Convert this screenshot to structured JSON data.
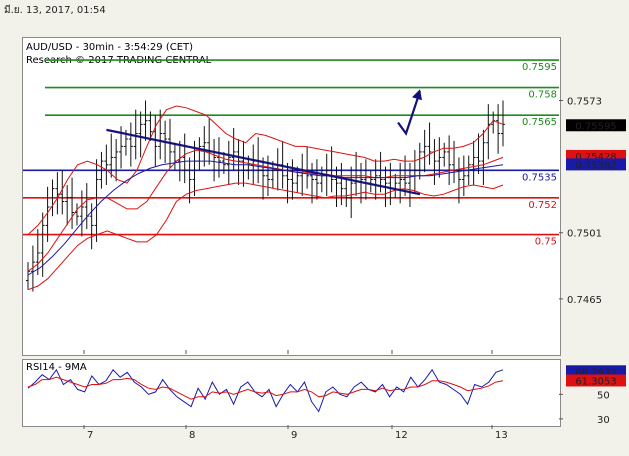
{
  "page": {
    "date_stamp": "มี.ย. 13, 2017, 01:54"
  },
  "chart_data": [
    {
      "type": "candlestick",
      "title": "AUD/USD - 30min - 3:54:29 (CET)",
      "subtitle": "Research © 2017 TRADING CENTRAL",
      "ylim": [
        0.7435,
        0.7607
      ],
      "y_ticks": [
        0.7573,
        0.7501,
        0.7465
      ],
      "x_ticks": [
        "7",
        "8",
        "9",
        "12",
        "13"
      ],
      "levels": [
        {
          "label": "0.7595",
          "value": 0.7595,
          "color": "#1f8a1f"
        },
        {
          "label": "0.758",
          "value": 0.758,
          "color": "#1f8a1f"
        },
        {
          "label": "0.7565",
          "value": 0.7565,
          "color": "#1f8a1f"
        },
        {
          "label": "0.7535",
          "value": 0.7535,
          "color": "#1a1aa8"
        },
        {
          "label": "0.752",
          "value": 0.752,
          "color": "#dd1111"
        },
        {
          "label": "0.75",
          "value": 0.75,
          "color": "#dd1111"
        }
      ],
      "price_tags": [
        {
          "label": "0.75595",
          "value": 0.75595,
          "bg": "#000000",
          "fg": "#ffffff"
        },
        {
          "label": "0.75428",
          "value": 0.75428,
          "bg": "#dd1111",
          "fg": "#000000"
        },
        {
          "label": "0.75382",
          "value": 0.75382,
          "bg": "#1a1aa8",
          "fg": "#ffffff"
        }
      ],
      "close_series": [
        0.748,
        0.7485,
        0.749,
        0.7505,
        0.7515,
        0.7525,
        0.7522,
        0.7518,
        0.752,
        0.7512,
        0.751,
        0.7515,
        0.751,
        0.7505,
        0.753,
        0.754,
        0.7538,
        0.7542,
        0.7545,
        0.7548,
        0.7552,
        0.7548,
        0.7555,
        0.756,
        0.7562,
        0.7556,
        0.7548,
        0.7555,
        0.7552,
        0.7545,
        0.754,
        0.7542,
        0.7535,
        0.753,
        0.754,
        0.7548,
        0.755,
        0.7545,
        0.7542,
        0.754,
        0.7538,
        0.7542,
        0.7545,
        0.754,
        0.7535,
        0.7538,
        0.754,
        0.7535,
        0.7532,
        0.753,
        0.7535,
        0.7538,
        0.7532,
        0.753,
        0.7528,
        0.7532,
        0.7535,
        0.7532,
        0.753,
        0.7528,
        0.7532,
        0.7535,
        0.753,
        0.7528,
        0.7525,
        0.752,
        0.7528,
        0.7532,
        0.753,
        0.7528,
        0.753,
        0.7532,
        0.753,
        0.7528,
        0.7525,
        0.7528,
        0.753,
        0.7528,
        0.7532,
        0.7535,
        0.7545,
        0.7548,
        0.7545,
        0.754,
        0.7542,
        0.7545,
        0.7538,
        0.7535,
        0.753,
        0.7532,
        0.7538,
        0.7542,
        0.754,
        0.755,
        0.756,
        0.7562,
        0.7555,
        0.756
      ],
      "bollinger": {
        "upper": [
          0.75,
          0.7505,
          0.7512,
          0.752,
          0.753,
          0.7538,
          0.754,
          0.7538,
          0.7535,
          0.753,
          0.7528,
          0.7535,
          0.7548,
          0.756,
          0.7568,
          0.757,
          0.7569,
          0.7567,
          0.7565,
          0.756,
          0.7555,
          0.7552,
          0.755,
          0.7555,
          0.7554,
          0.7552,
          0.755,
          0.7548,
          0.7548,
          0.7547,
          0.7546,
          0.7545,
          0.7544,
          0.7543,
          0.7542,
          0.754,
          0.754,
          0.7541,
          0.754,
          0.754,
          0.7542,
          0.7545,
          0.7547,
          0.7547,
          0.7548,
          0.755,
          0.7555,
          0.7562,
          0.756
        ],
        "lower": [
          0.747,
          0.7472,
          0.7476,
          0.7482,
          0.7488,
          0.7494,
          0.7498,
          0.75,
          0.7502,
          0.75,
          0.7498,
          0.7496,
          0.7496,
          0.75,
          0.7508,
          0.7518,
          0.7522,
          0.7524,
          0.7525,
          0.7526,
          0.7527,
          0.7528,
          0.7528,
          0.7527,
          0.7526,
          0.7525,
          0.7524,
          0.7523,
          0.7522,
          0.7521,
          0.752,
          0.7521,
          0.7521,
          0.7522,
          0.7523,
          0.7522,
          0.7522,
          0.7524,
          0.7525,
          0.7524,
          0.7522,
          0.7521,
          0.7522,
          0.7524,
          0.7526,
          0.7527,
          0.7526,
          0.7525,
          0.7527
        ],
        "mid": [
          0.748,
          0.7484,
          0.749,
          0.7498,
          0.7506,
          0.7514,
          0.7519,
          0.752,
          0.752,
          0.7517,
          0.7514,
          0.7514,
          0.7518,
          0.7526,
          0.7534,
          0.754,
          0.7544,
          0.7546,
          0.7545,
          0.7543,
          0.7541,
          0.754,
          0.7539,
          0.7538,
          0.7537,
          0.7536,
          0.7535,
          0.7534,
          0.7534,
          0.7533,
          0.7533,
          0.7532,
          0.7532,
          0.7532,
          0.7532,
          0.7531,
          0.7531,
          0.7532,
          0.7532,
          0.7532,
          0.7532,
          0.7533,
          0.7534,
          0.7535,
          0.7536,
          0.7537,
          0.7538,
          0.754,
          0.7542
        ]
      },
      "ma_slow": [
        0.7478,
        0.7482,
        0.7488,
        0.7495,
        0.7503,
        0.7511,
        0.7518,
        0.7524,
        0.7529,
        0.7533,
        0.7536,
        0.7538,
        0.7539,
        0.754,
        0.754,
        0.754,
        0.7539,
        0.7538,
        0.7538,
        0.7537,
        0.7536,
        0.7535,
        0.7534,
        0.7533,
        0.7532,
        0.7532,
        0.7531,
        0.7531,
        0.7531,
        0.7531,
        0.7531,
        0.7531,
        0.7532,
        0.7532,
        0.7533,
        0.7534,
        0.7535,
        0.7536,
        0.7537,
        0.7538
      ],
      "trendline": [
        {
          "day": 7.22,
          "value": 0.7557
        },
        {
          "day": 10.28,
          "value": 0.7522
        }
      ],
      "forecast_arrow": [
        {
          "day": 10.06,
          "value": 0.7561
        },
        {
          "day": 10.14,
          "value": 0.7555
        },
        {
          "day": 10.28,
          "value": 0.7578
        }
      ]
    },
    {
      "type": "line",
      "title": "RSI14 - 9MA",
      "ylim": [
        25,
        78
      ],
      "y_ticks": [
        50,
        30
      ],
      "x_ticks": [
        "7",
        "8",
        "9",
        "12",
        "13"
      ],
      "series": [
        {
          "values": [
            55,
            60,
            66,
            62,
            70,
            58,
            62,
            54,
            52,
            65,
            58,
            61,
            70,
            64,
            68,
            60,
            56,
            50,
            52,
            62,
            54,
            48,
            44,
            40,
            55,
            46,
            60,
            50,
            54,
            42,
            56,
            60,
            52,
            48,
            54,
            40,
            50,
            58,
            52,
            60,
            44,
            36,
            52,
            56,
            50,
            48,
            56,
            60,
            54,
            52,
            58,
            48,
            56,
            52,
            64,
            56,
            62,
            70,
            60,
            58,
            54,
            50,
            42,
            58,
            56,
            60,
            68,
            70
          ],
          "color": "#1a1aa8"
        },
        {
          "values": [
            56,
            58,
            62,
            62,
            64,
            62,
            60,
            58,
            56,
            58,
            58,
            59,
            62,
            62,
            63,
            62,
            58,
            55,
            54,
            56,
            55,
            52,
            49,
            46,
            48,
            48,
            52,
            51,
            52,
            50,
            52,
            54,
            52,
            51,
            52,
            49,
            50,
            52,
            52,
            54,
            52,
            48,
            49,
            52,
            51,
            50,
            52,
            54,
            54,
            53,
            55,
            53,
            54,
            54,
            56,
            56,
            58,
            61,
            61,
            60,
            58,
            56,
            53,
            54,
            55,
            57,
            60,
            61
          ],
          "color": "#dd1111"
        }
      ],
      "value_tags": [
        {
          "label": "68.7932",
          "value": 68.7932,
          "bg": "#1a1aa8",
          "fg": "#ffffff"
        },
        {
          "label": "61.3053",
          "value": 61.3053,
          "bg": "#dd1111",
          "fg": "#000000"
        }
      ]
    }
  ]
}
